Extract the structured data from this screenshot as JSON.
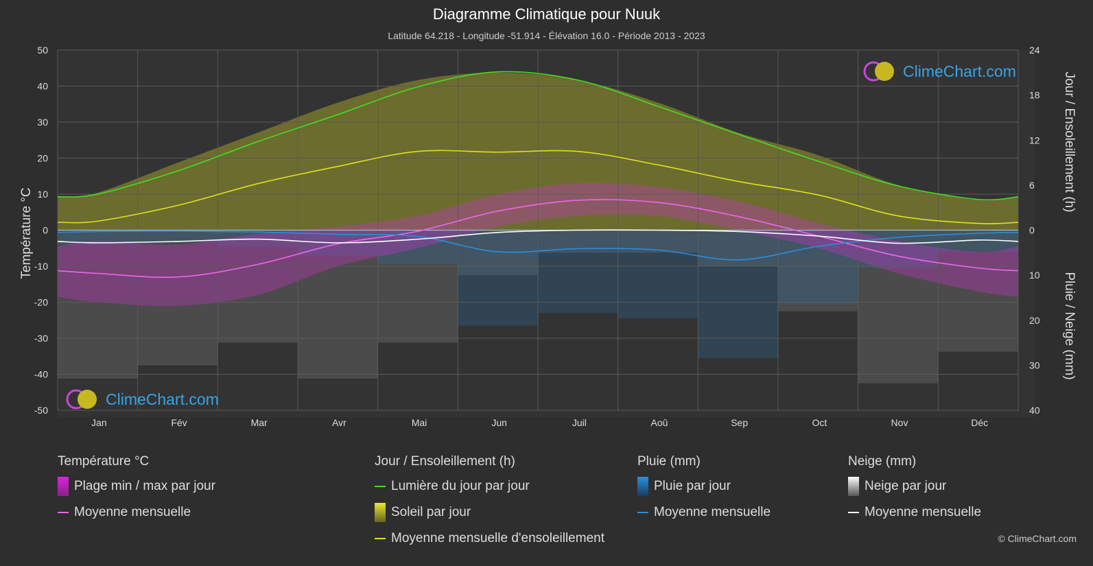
{
  "title": "Diagramme Climatique pour Nuuk",
  "subtitle": "Latitude 64.218 - Longitude -51.914 - Élévation 16.0 - Période 2013 - 2023",
  "axes": {
    "left_label": "Température °C",
    "right_top_label": "Jour / Ensoleillement (h)",
    "right_bottom_label": "Pluie / Neige (mm)"
  },
  "logo_text": "ClimeChart.com",
  "copyright": "© ClimeChart.com",
  "colors": {
    "background": "#2e2e2e",
    "daylight": "#44dd22",
    "sunshine_avg": "#e0e020",
    "temp_avg": "#ee66ee",
    "rain_avg": "#2a8ee0",
    "snow_avg": "#ffffff",
    "grid": "#5a5a5a"
  },
  "legend": {
    "temperature": {
      "title": "Température °C",
      "items": [
        {
          "label": "Plage min / max par jour",
          "swatch": "box",
          "color": "#dd22dd"
        },
        {
          "label": "Moyenne mensuelle",
          "swatch": "line",
          "color": "#ee66ee"
        }
      ]
    },
    "sun": {
      "title": "Jour / Ensoleillement (h)",
      "items": [
        {
          "label": "Lumière du jour par jour",
          "swatch": "line",
          "color": "#44dd22"
        },
        {
          "label": "Soleil par jour",
          "swatch": "box",
          "color": "#c8c828"
        },
        {
          "label": "Moyenne mensuelle d'ensoleillement",
          "swatch": "line",
          "color": "#e0e020"
        }
      ]
    },
    "rain": {
      "title": "Pluie (mm)",
      "items": [
        {
          "label": "Pluie par jour",
          "swatch": "box",
          "color": "#2a8ee0"
        },
        {
          "label": "Moyenne mensuelle",
          "swatch": "line",
          "color": "#2a8ee0"
        }
      ]
    },
    "snow": {
      "title": "Neige (mm)",
      "items": [
        {
          "label": "Neige par jour",
          "swatch": "box",
          "color": "#dddddd"
        },
        {
          "label": "Moyenne mensuelle",
          "swatch": "line",
          "color": "#ffffff"
        }
      ]
    }
  },
  "chart_data": {
    "type": "line",
    "categories": [
      "Jan",
      "Fév",
      "Mar",
      "Avr",
      "Mai",
      "Jun",
      "Juil",
      "Aoû",
      "Sep",
      "Oct",
      "Nov",
      "Déc"
    ],
    "left_axis": {
      "label": "Température °C",
      "range": [
        -50,
        50
      ],
      "ticks": [
        50,
        40,
        30,
        20,
        10,
        0,
        -10,
        -20,
        -30,
        -40,
        -50
      ]
    },
    "right_axis_top": {
      "label": "Jour / Ensoleillement (h)",
      "range": [
        0,
        24
      ],
      "ticks": [
        24,
        18,
        12,
        6,
        0
      ]
    },
    "right_axis_bottom": {
      "label": "Pluie / Neige (mm)",
      "range": [
        0,
        40
      ],
      "ticks": [
        0,
        10,
        20,
        30,
        40
      ]
    },
    "grid": true,
    "series": [
      {
        "name": "Lumière du jour par jour",
        "axis": "hours",
        "values": [
          4.8,
          7.9,
          11.8,
          15.4,
          19.1,
          21.1,
          20.0,
          16.5,
          12.8,
          9.2,
          5.9,
          4.1
        ]
      },
      {
        "name": "Moyenne mensuelle d'ensoleillement",
        "axis": "hours",
        "values": [
          1.2,
          3.3,
          6.2,
          8.5,
          10.5,
          10.4,
          10.5,
          8.7,
          6.5,
          4.7,
          1.9,
          0.9
        ]
      },
      {
        "name": "Température moyenne mensuelle",
        "axis": "temp",
        "values": [
          -12.0,
          -13.0,
          -9.5,
          -3.8,
          -0.3,
          5.3,
          8.3,
          7.7,
          3.8,
          -1.6,
          -7.2,
          -10.5
        ]
      },
      {
        "name": "Pluie moyenne mensuelle",
        "axis": "precip",
        "values": [
          0.3,
          0.2,
          0.4,
          0.9,
          1.4,
          4.8,
          4.1,
          4.4,
          6.6,
          3.6,
          1.6,
          0.7
        ]
      },
      {
        "name": "Neige moyenne mensuelle",
        "axis": "precip",
        "values": [
          2.8,
          2.5,
          2.0,
          2.8,
          2.0,
          0.5,
          0.0,
          0.0,
          0.3,
          1.3,
          2.9,
          2.2
        ]
      }
    ],
    "temp_daily_range": {
      "max": [
        -3,
        -4,
        -1,
        1,
        4,
        10,
        13,
        12,
        8,
        2,
        -3,
        -6
      ],
      "min": [
        -20,
        -21,
        -18,
        -10,
        -5,
        1,
        4,
        4,
        0,
        -5,
        -12,
        -17
      ]
    },
    "sunshine_daily_max_hours": [
      5,
      9,
      13,
      17,
      20,
      21,
      20,
      17,
      13,
      10,
      6,
      4
    ]
  }
}
